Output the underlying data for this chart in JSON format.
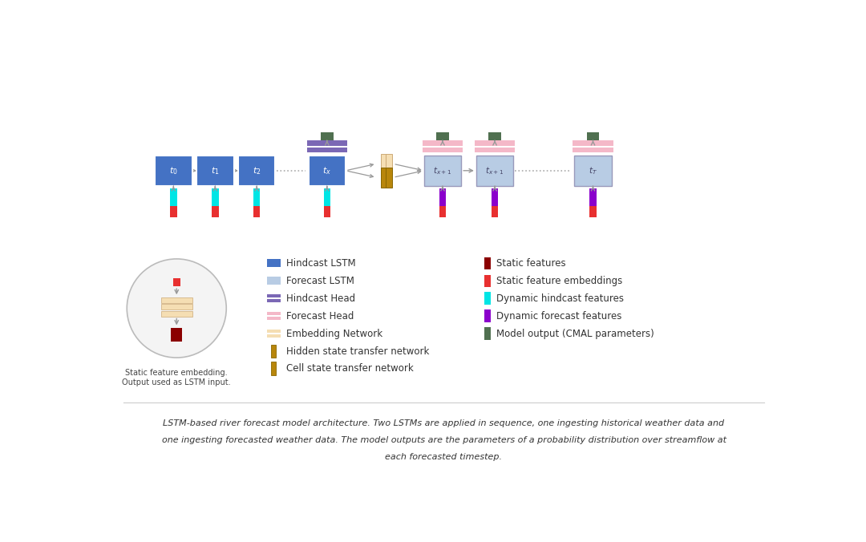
{
  "bg_color": "#ffffff",
  "hindcast_lstm_color": "#4472c4",
  "forecast_lstm_color": "#b8cce4",
  "hindcast_head_color": "#7b68b5",
  "forecast_head_color": "#f4b8c8",
  "embedding_network_color": "#f5deb3",
  "hidden_state_color": "#b8860b",
  "cell_state_color": "#b8860b",
  "static_feat_color": "#8b0000",
  "static_embed_color": "#e83030",
  "dynamic_hindcast_color": "#00e5e5",
  "dynamic_forecast_color": "#8b00cc",
  "model_output_color": "#507050",
  "arrow_color": "#999999",
  "text_color": "#333333",
  "caption_line1": "LSTM-based river forecast model architecture. Two LSTMs are applied in sequence, one ingesting historical weather data and",
  "caption_line2": "one ingesting forecasted weather data. The model outputs are the parameters of a probability distribution over streamflow at",
  "caption_line3": "each forecasted timestep."
}
